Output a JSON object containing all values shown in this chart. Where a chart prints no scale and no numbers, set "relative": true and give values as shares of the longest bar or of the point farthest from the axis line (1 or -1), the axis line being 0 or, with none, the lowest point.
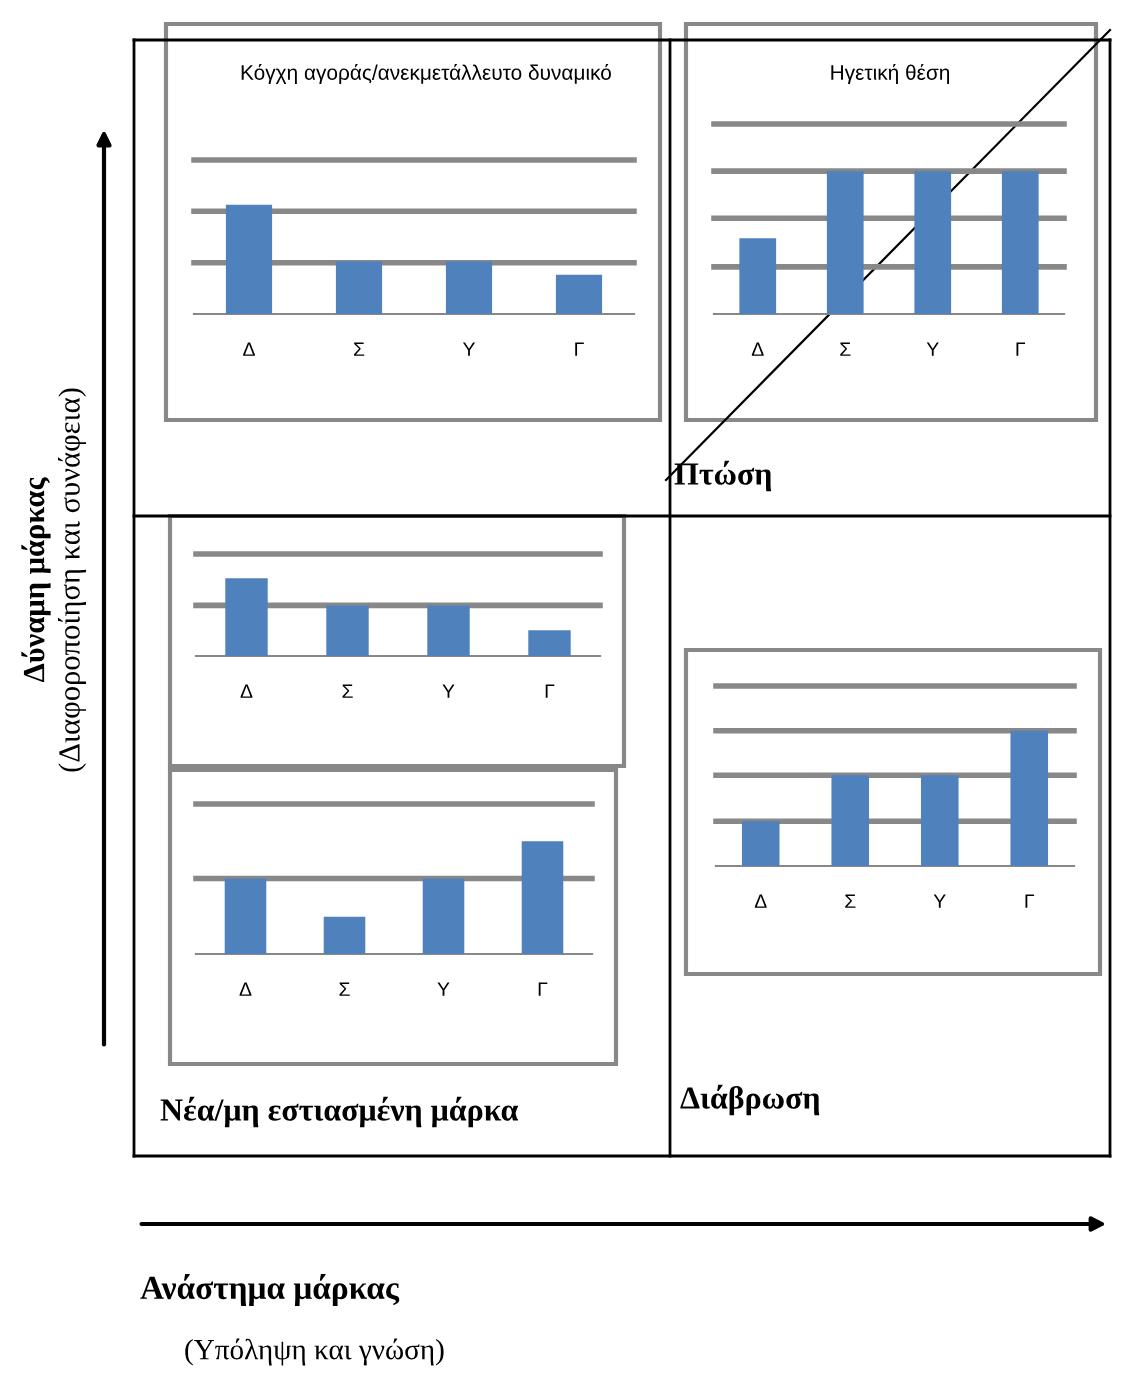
{
  "chart_data": [
    {
      "type": "other",
      "xlabel": "Ανάστημα μάρκας\n(Υπόληψη και γνώση)",
      "ylabel": "Δύναμη μάρκας\n(Διαφοροποίηση και συνάφεια)",
      "annotations": [
        "Πτώση",
        "Νέα/μη εστιασμένη μάρκα",
        "Διάβρωση"
      ]
    },
    {
      "type": "bar",
      "title": "Κόγχη αγοράς/ανεκμετάλλευτο δυναμικό",
      "categories": [
        "Δ",
        "Σ",
        "Υ",
        "Γ"
      ],
      "values": [
        1,
        0.48,
        0.48,
        0.36
      ],
      "color": "#4f81bd",
      "relative": true,
      "ref_lines": [
        {
          "axis": "y",
          "value": 0.47,
          "color": "#888888"
        },
        {
          "axis": "y",
          "value": 0.94,
          "color": "#888888"
        },
        {
          "axis": "y",
          "value": 1.41,
          "color": "#888888"
        }
      ]
    },
    {
      "type": "bar",
      "title": "Ηγετική θέση",
      "categories": [
        "Δ",
        "Σ",
        "Υ",
        "Γ"
      ],
      "values": [
        0.53,
        1,
        1,
        1
      ],
      "color": "#4f81bd",
      "relative": true,
      "ref_lines": [
        {
          "axis": "y",
          "value": 0.33,
          "color": "#888888"
        },
        {
          "axis": "y",
          "value": 0.67,
          "color": "#888888"
        },
        {
          "axis": "y",
          "value": 1,
          "color": "#888888"
        },
        {
          "axis": "y",
          "value": 1.33,
          "color": "#888888"
        }
      ]
    },
    {
      "type": "bar",
      "categories": [
        "Δ",
        "Σ",
        "Υ",
        "Γ"
      ],
      "values": [
        1,
        0.65,
        0.65,
        0.33
      ],
      "color": "#4f81bd",
      "relative": true,
      "ref_lines": [
        {
          "axis": "y",
          "value": 0.65,
          "color": "#888888"
        },
        {
          "axis": "y",
          "value": 1.31,
          "color": "#888888"
        }
      ]
    },
    {
      "type": "bar",
      "categories": [
        "Δ",
        "Σ",
        "Υ",
        "Γ"
      ],
      "values": [
        0.67,
        0.33,
        0.67,
        1
      ],
      "color": "#4f81bd",
      "relative": true,
      "ref_lines": [
        {
          "axis": "y",
          "value": 0.67,
          "color": "#888888"
        },
        {
          "axis": "y",
          "value": 1.33,
          "color": "#888888"
        }
      ]
    },
    {
      "type": "bar",
      "categories": [
        "Δ",
        "Σ",
        "Υ",
        "Γ"
      ],
      "values": [
        0.33,
        0.67,
        0.67,
        1
      ],
      "color": "#4f81bd",
      "relative": true,
      "ref_lines": [
        {
          "axis": "y",
          "value": 0.33,
          "color": "#888888"
        },
        {
          "axis": "y",
          "value": 0.67,
          "color": "#888888"
        },
        {
          "axis": "y",
          "value": 1,
          "color": "#888888"
        },
        {
          "axis": "y",
          "value": 1.33,
          "color": "#888888"
        }
      ]
    }
  ]
}
